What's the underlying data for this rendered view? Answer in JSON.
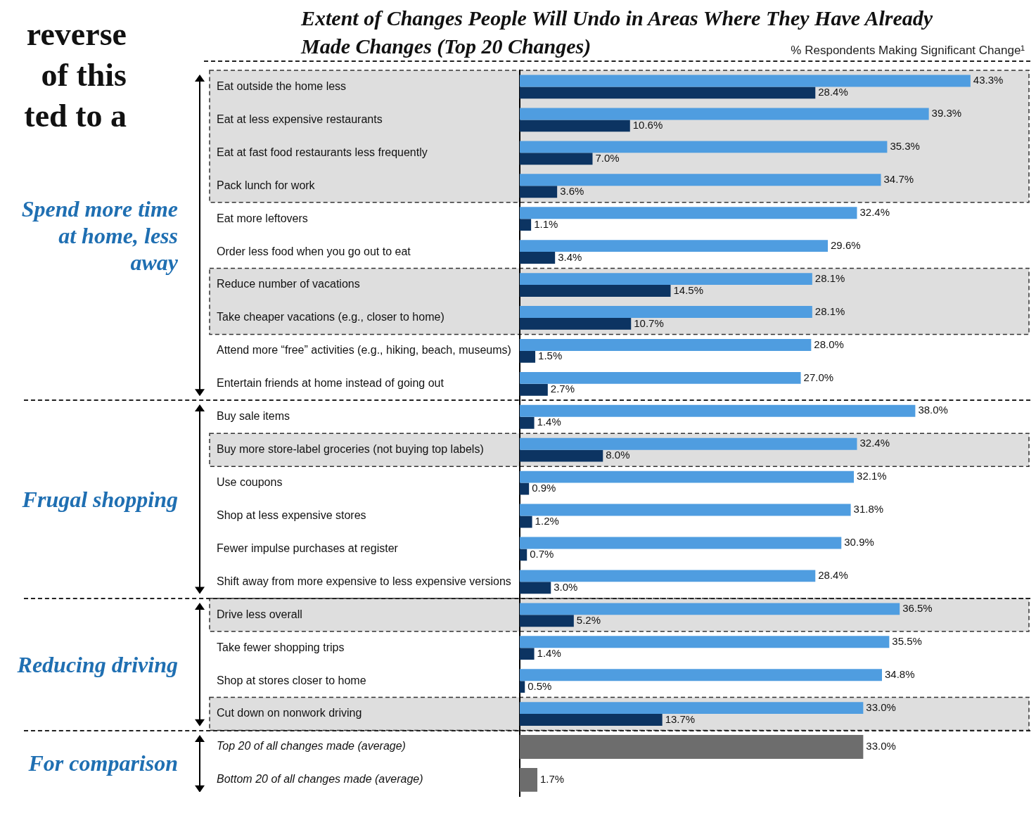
{
  "chart_data": {
    "type": "bar",
    "orientation": "horizontal",
    "title": "Extent of Changes People Will Undo in Areas Where They Have Already Made Changes (Top 20 Changes)",
    "subtitle": "% Respondents Making Significant Change¹",
    "categories": [
      "Eat outside the home less",
      "Eat at less expensive restaurants",
      "Eat at fast food restaurants less frequently",
      "Pack lunch for work",
      "Eat more leftovers",
      "Order less food when you go out to eat",
      "Reduce number of vacations",
      "Take cheaper vacations (e.g., closer to home)",
      "Attend more “free” activities (e.g., hiking, beach, museums)",
      "Entertain friends at home instead of going out",
      "Buy sale items",
      "Buy more store-label groceries (not buying top labels)",
      "Use coupons",
      "Shop at less expensive stores",
      "Fewer impulse purchases at register",
      "Shift away from more expensive to less expensive versions",
      "Drive less overall",
      "Take fewer shopping trips",
      "Shop at stores closer to home",
      "Cut down on nonwork driving",
      "Top 20 of all changes made (average)",
      "Bottom 20 of all changes made (average)"
    ],
    "series": [
      {
        "colors": [
          "#4f9de0",
          "#4f9de0",
          "#4f9de0",
          "#4f9de0",
          "#4f9de0",
          "#4f9de0",
          "#4f9de0",
          "#4f9de0",
          "#4f9de0",
          "#4f9de0",
          "#4f9de0",
          "#4f9de0",
          "#4f9de0",
          "#4f9de0",
          "#4f9de0",
          "#4f9de0",
          "#4f9de0",
          "#4f9de0",
          "#4f9de0",
          "#4f9de0",
          "#6d6d6d",
          "#6d6d6d"
        ],
        "values": [
          43.3,
          39.3,
          35.3,
          34.7,
          32.4,
          29.6,
          28.1,
          28.1,
          28.0,
          27.0,
          38.0,
          32.4,
          32.1,
          31.8,
          30.9,
          28.4,
          36.5,
          35.5,
          34.8,
          33.0,
          33.0,
          1.7
        ],
        "value_labels": [
          "43.3%",
          "39.3%",
          "35.3%",
          "34.7%",
          "32.4%",
          "29.6%",
          "28.1%",
          "28.1%",
          "28.0%",
          "27.0%",
          "38.0%",
          "32.4%",
          "32.1%",
          "31.8%",
          "30.9%",
          "28.4%",
          "36.5%",
          "35.5%",
          "34.8%",
          "33.0%",
          "33.0%",
          "1.7%"
        ]
      },
      {
        "color": "#0c3462",
        "values": [
          28.4,
          10.6,
          7.0,
          3.6,
          1.1,
          3.4,
          14.5,
          10.7,
          1.5,
          2.7,
          1.4,
          8.0,
          0.9,
          1.2,
          0.7,
          3.0,
          5.2,
          1.4,
          0.5,
          13.7,
          null,
          null
        ],
        "value_labels": [
          "28.4%",
          "10.6%",
          "7.0%",
          "3.6%",
          "1.1%",
          "3.4%",
          "14.5%",
          "10.7%",
          "1.5%",
          "2.7%",
          "1.4%",
          "8.0%",
          "0.9%",
          "1.2%",
          "0.7%",
          "3.0%",
          "5.2%",
          "1.4%",
          "0.5%",
          "13.7%",
          null,
          null
        ]
      }
    ],
    "bands": [
      {
        "axis": "y",
        "from": "Eat outside the home less",
        "to": "Pack lunch for work",
        "color": "#dedede"
      },
      {
        "axis": "y",
        "from": "Reduce number of vacations",
        "to": "Take cheaper vacations (e.g., closer to home)",
        "color": "#dedede"
      },
      {
        "axis": "y",
        "from": "Buy more store-label groceries (not buying top labels)",
        "to": "Buy more store-label groceries (not buying top labels)",
        "color": "#dedede"
      },
      {
        "axis": "y",
        "from": "Drive less overall",
        "to": "Drive less overall",
        "color": "#dedede"
      },
      {
        "axis": "y",
        "from": "Cut down on nonwork driving",
        "to": "Cut down on nonwork driving",
        "color": "#dedede"
      }
    ],
    "annotations": [
      "Spend more time at home, less away",
      "Frugal shopping",
      "Reducing driving",
      "For comparison",
      "reverse",
      "of this",
      "ted to a"
    ],
    "legend": false,
    "grid": false
  }
}
